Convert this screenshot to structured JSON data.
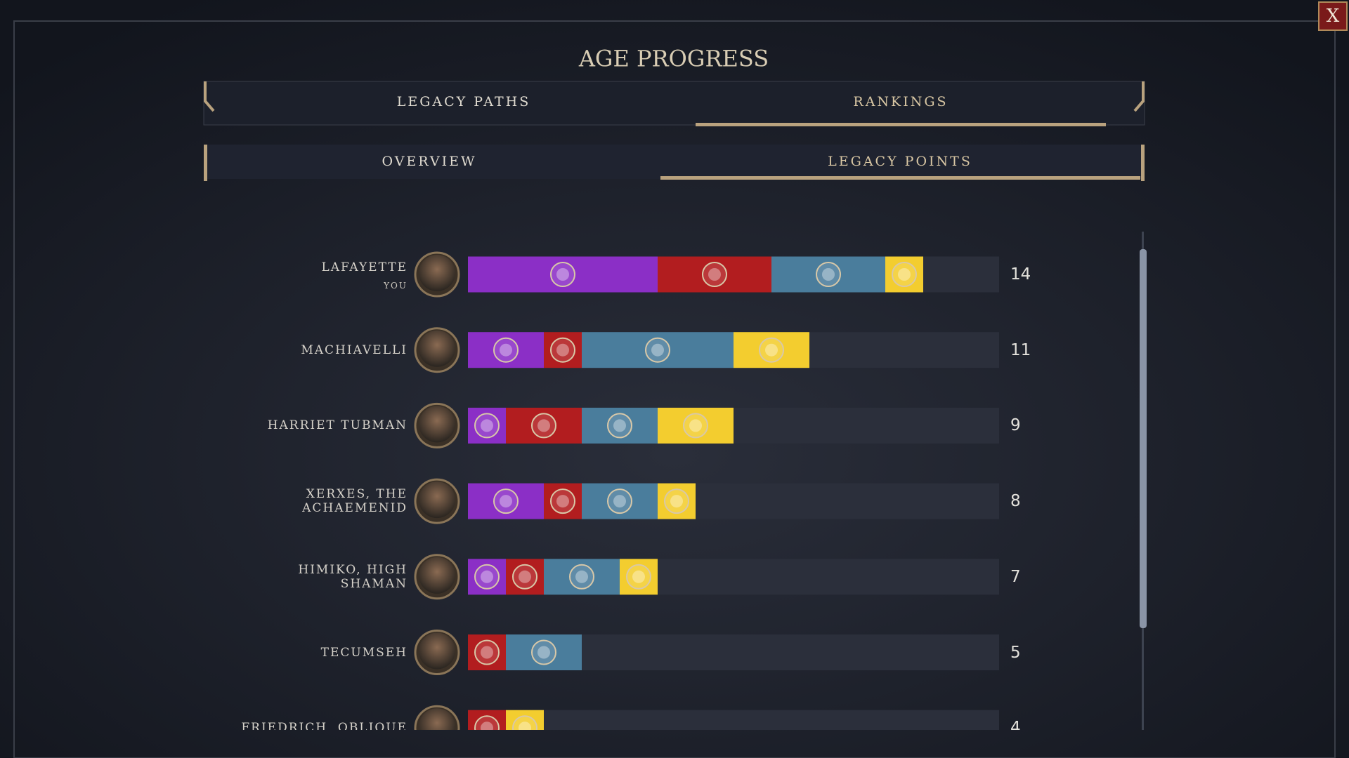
{
  "header": {
    "title": "AGE PROGRESS",
    "close": "X"
  },
  "tabs": [
    "LEGACY PATHS",
    "RANKINGS"
  ],
  "subtabs": [
    "OVERVIEW",
    "LEGACY POINTS"
  ],
  "chart_data": {
    "type": "bar",
    "orientation": "horizontal",
    "stacked": true,
    "categories": [
      "LAFAYETTE",
      "MACHIAVELLI",
      "HARRIET TUBMAN",
      "XERXES, THE ACHAEMENID",
      "HIMIKO, HIGH SHAMAN",
      "TECUMSEH",
      "FRIEDRICH, OBLIQUE"
    ],
    "you_label": "YOU",
    "series": [
      {
        "color": "#8b2fc6",
        "values": [
          5,
          2,
          1,
          2,
          1,
          0,
          0
        ]
      },
      {
        "color": "#b21d1f",
        "values": [
          3,
          1,
          2,
          1,
          1,
          1,
          1
        ]
      },
      {
        "color": "#4a7d9c",
        "values": [
          3,
          4,
          2,
          2,
          2,
          2,
          0
        ]
      },
      {
        "color": "#f3cd2f",
        "values": [
          1,
          2,
          2,
          1,
          1,
          0,
          1
        ]
      }
    ],
    "totals": [
      14,
      11,
      9,
      8,
      7,
      5,
      4
    ],
    "xlim": [
      0,
      14
    ]
  }
}
